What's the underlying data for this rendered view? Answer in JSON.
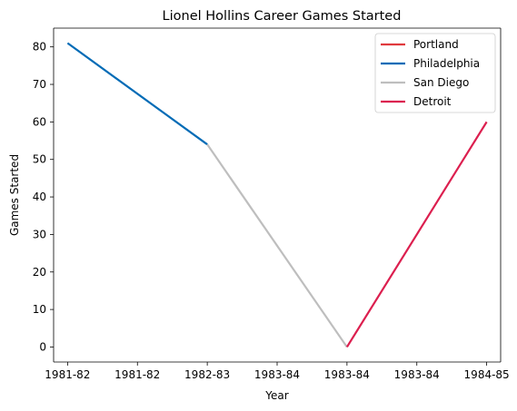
{
  "chart_data": {
    "type": "line",
    "title": "Lionel Hollins Career Games Started",
    "xlabel": "Year",
    "ylabel": "Games Started",
    "x_tick_labels": [
      "1981-82",
      "1981-82",
      "1982-83",
      "1983-84",
      "1983-84",
      "1983-84",
      "1984-85"
    ],
    "xlim": [
      -0.2,
      6.2
    ],
    "ylim": [
      -4,
      85
    ],
    "y_ticks": [
      0,
      10,
      20,
      30,
      40,
      50,
      60,
      70,
      80
    ],
    "grid": false,
    "legend_position": "top-right",
    "series": [
      {
        "name": "Portland",
        "color": "#e03a3e",
        "points": []
      },
      {
        "name": "Philadelphia",
        "color": "#006bb6",
        "points": [
          {
            "x": 0,
            "y": 81
          },
          {
            "x": 2,
            "y": 54
          }
        ]
      },
      {
        "name": "San Diego",
        "color": "#bebebe",
        "points": [
          {
            "x": 2,
            "y": 54
          },
          {
            "x": 4,
            "y": 0
          }
        ]
      },
      {
        "name": "Detroit",
        "color": "#dc1f4f",
        "points": [
          {
            "x": 4,
            "y": 0
          },
          {
            "x": 6,
            "y": 60
          }
        ]
      }
    ]
  }
}
